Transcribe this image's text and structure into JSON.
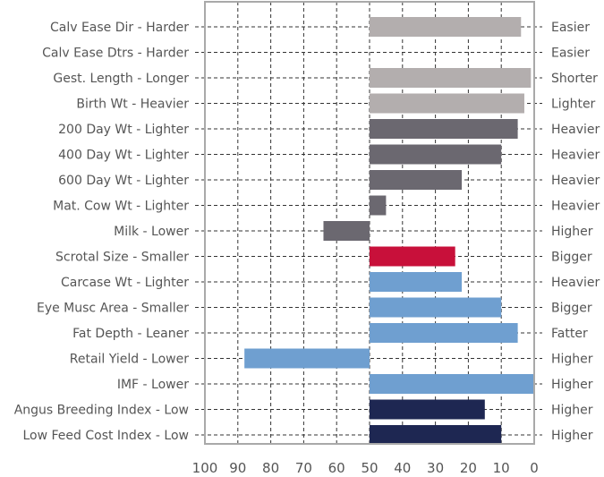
{
  "chart_data": {
    "type": "bar",
    "orientation": "horizontal",
    "x_axis": {
      "ticks": [
        100,
        90,
        80,
        70,
        60,
        50,
        40,
        30,
        20,
        10,
        0
      ],
      "reversed": true,
      "range": [
        100,
        0
      ],
      "baseline": 50
    },
    "grid": true,
    "colors": {
      "light_grey": "#b3aeae",
      "dark_grey": "#6b6870",
      "red": "#c8103a",
      "blue": "#6f9fd0",
      "navy": "#1e2752"
    },
    "rows": [
      {
        "left": "Calv Ease Dir - Harder",
        "right": "Easier",
        "value": 4,
        "color": "light_grey"
      },
      {
        "left": "Calv Ease Dtrs - Harder",
        "right": "Easier",
        "value": null,
        "color": "light_grey"
      },
      {
        "left": "Gest. Length - Longer",
        "right": "Shorter",
        "value": 1,
        "color": "light_grey"
      },
      {
        "left": "Birth Wt - Heavier",
        "right": "Lighter",
        "value": 3,
        "color": "light_grey"
      },
      {
        "left": "200 Day Wt - Lighter",
        "right": "Heavier",
        "value": 5,
        "color": "dark_grey"
      },
      {
        "left": "400 Day Wt - Lighter",
        "right": "Heavier",
        "value": 10,
        "color": "dark_grey"
      },
      {
        "left": "600 Day Wt - Lighter",
        "right": "Heavier",
        "value": 22,
        "color": "dark_grey"
      },
      {
        "left": "Mat. Cow Wt - Lighter",
        "right": "Heavier",
        "value": 45,
        "color": "dark_grey"
      },
      {
        "left": "Milk - Lower",
        "right": "Higher",
        "value": 64,
        "color": "dark_grey"
      },
      {
        "left": "Scrotal Size - Smaller",
        "right": "Bigger",
        "value": 24,
        "color": "red"
      },
      {
        "left": "Carcase Wt - Lighter",
        "right": "Heavier",
        "value": 22,
        "color": "blue"
      },
      {
        "left": "Eye Musc Area - Smaller",
        "right": "Bigger",
        "value": 10,
        "color": "blue"
      },
      {
        "left": "Fat Depth - Leaner",
        "right": "Fatter",
        "value": 5,
        "color": "blue"
      },
      {
        "left": "Retail Yield - Lower",
        "right": "Higher",
        "value": 88,
        "color": "blue"
      },
      {
        "left": "IMF - Lower",
        "right": "Higher",
        "value": 0,
        "color": "blue"
      },
      {
        "left": "Angus Breeding Index - Low",
        "right": "Higher",
        "value": 15,
        "color": "navy"
      },
      {
        "left": "Low Feed Cost Index - Low",
        "right": "Higher",
        "value": 10,
        "color": "navy"
      }
    ]
  }
}
